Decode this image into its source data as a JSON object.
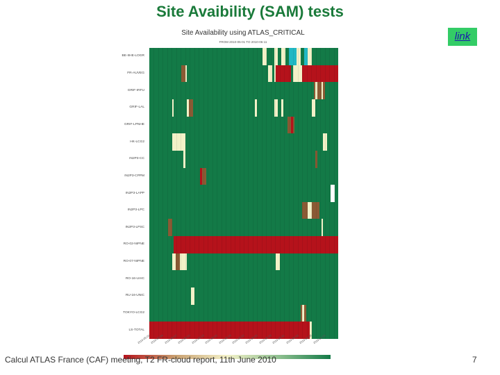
{
  "slide": {
    "title": "Site Avaibility (SAM) tests",
    "link_label": "link",
    "footer": "Calcul ATLAS France (CAF) meeting, T2 FR-cloud report, 11th June 2010",
    "page_number": "7"
  },
  "plot": {
    "title": "Site Availability using ATLAS_CRITICAL",
    "subtitle": "FROM 2010-05-01 TO 2010-06-11",
    "sites": [
      "BE-IIHE-LOGR",
      "FR-AUVEG",
      "GRIF-IRFU",
      "GRIF-LAL",
      "GRIF-LPNHE",
      "HK-LCG2",
      "IN2P3-CC",
      "IN2P3-CPPM",
      "IN2P3-LAPP",
      "IN2P3-LPC",
      "IN2P3-LPSC",
      "RO-02-NIPNE",
      "RO-07-NIPNE",
      "RO-16-UAIC",
      "RU-16-UNIC",
      "TOKYO-LCG2",
      "LS-TOTAL"
    ],
    "dates": [
      "2010-05-01",
      "2010-05-04",
      "2010-05-07",
      "2010-05-10",
      "2010-05-13",
      "2010-05-16",
      "2010-05-19",
      "2010-05-22",
      "2010-05-25",
      "2010-05-28",
      "2010-05-31",
      "2010-06-03",
      "2010-06-06",
      "2010-06-09"
    ],
    "colors": {
      "available": "#137a47",
      "unavailable": "#b5121b",
      "degraded_light": "#f3f1c8",
      "degraded_brown": "#8a5a34",
      "unknown": "#22b8c4",
      "nodata": "#ffffff"
    },
    "rows": [
      [
        {
          "s": 0.6,
          "e": 0.62,
          "c": "light"
        },
        {
          "s": 0.66,
          "e": 0.68,
          "c": "light"
        },
        {
          "s": 0.7,
          "e": 0.72,
          "c": "light"
        },
        {
          "s": 0.74,
          "e": 0.78,
          "c": "unknown"
        },
        {
          "s": 0.78,
          "e": 0.8,
          "c": "light"
        },
        {
          "s": 0.82,
          "e": 0.84,
          "c": "unknown"
        },
        {
          "s": 0.84,
          "e": 0.86,
          "c": "light"
        }
      ],
      [
        {
          "s": 0.17,
          "e": 0.19,
          "c": "brown"
        },
        {
          "s": 0.19,
          "e": 0.2,
          "c": "light"
        },
        {
          "s": 0.63,
          "e": 0.65,
          "c": "light"
        },
        {
          "s": 0.66,
          "e": 0.67,
          "c": "light"
        },
        {
          "s": 0.67,
          "e": 0.75,
          "c": "red"
        },
        {
          "s": 0.76,
          "e": 0.81,
          "c": "light"
        },
        {
          "s": 0.81,
          "e": 1.0,
          "c": "red"
        }
      ],
      [
        {
          "s": 0.87,
          "e": 0.93,
          "c": "brown"
        },
        {
          "s": 0.88,
          "e": 0.89,
          "c": "light"
        },
        {
          "s": 0.91,
          "e": 0.92,
          "c": "light"
        }
      ],
      [
        {
          "s": 0.12,
          "e": 0.13,
          "c": "light"
        },
        {
          "s": 0.2,
          "e": 0.22,
          "c": "light"
        },
        {
          "s": 0.21,
          "e": 0.23,
          "c": "brown"
        },
        {
          "s": 0.56,
          "e": 0.57,
          "c": "light"
        },
        {
          "s": 0.66,
          "e": 0.68,
          "c": "light"
        },
        {
          "s": 0.7,
          "e": 0.71,
          "c": "light"
        },
        {
          "s": 0.86,
          "e": 0.88,
          "c": "light"
        }
      ],
      [
        {
          "s": 0.73,
          "e": 0.77,
          "c": "brown"
        },
        {
          "s": 0.75,
          "e": 0.76,
          "c": "red"
        }
      ],
      [
        {
          "s": 0.12,
          "e": 0.13,
          "c": "light"
        },
        {
          "s": 0.13,
          "e": 0.19,
          "c": "light"
        },
        {
          "s": 0.92,
          "e": 0.94,
          "c": "light"
        }
      ],
      [
        {
          "s": 0.18,
          "e": 0.19,
          "c": "light"
        },
        {
          "s": 0.88,
          "e": 0.89,
          "c": "brown"
        }
      ],
      [
        {
          "s": 0.27,
          "e": 0.3,
          "c": "brown"
        },
        {
          "s": 0.27,
          "e": 0.28,
          "c": "red"
        }
      ],
      [
        {
          "s": 0.96,
          "e": 0.98,
          "c": "nodata"
        }
      ],
      [
        {
          "s": 0.81,
          "e": 0.9,
          "c": "brown"
        },
        {
          "s": 0.84,
          "e": 0.86,
          "c": "light"
        }
      ],
      [
        {
          "s": 0.1,
          "e": 0.12,
          "c": "brown"
        },
        {
          "s": 0.91,
          "e": 0.92,
          "c": "light"
        }
      ],
      [
        {
          "s": 0.13,
          "e": 1.0,
          "c": "red"
        }
      ],
      [
        {
          "s": 0.12,
          "e": 0.2,
          "c": "light"
        },
        {
          "s": 0.14,
          "e": 0.16,
          "c": "brown"
        },
        {
          "s": 0.67,
          "e": 0.69,
          "c": "light"
        }
      ],
      [],
      [
        {
          "s": 0.22,
          "e": 0.23,
          "c": "brown"
        },
        {
          "s": 0.22,
          "e": 0.24,
          "c": "light"
        }
      ],
      [
        {
          "s": 0.8,
          "e": 0.83,
          "c": "brown"
        },
        {
          "s": 0.81,
          "e": 0.82,
          "c": "light"
        }
      ],
      [
        {
          "s": 0.0,
          "e": 0.85,
          "c": "red"
        },
        {
          "s": 0.85,
          "e": 0.86,
          "c": "light"
        }
      ]
    ]
  }
}
